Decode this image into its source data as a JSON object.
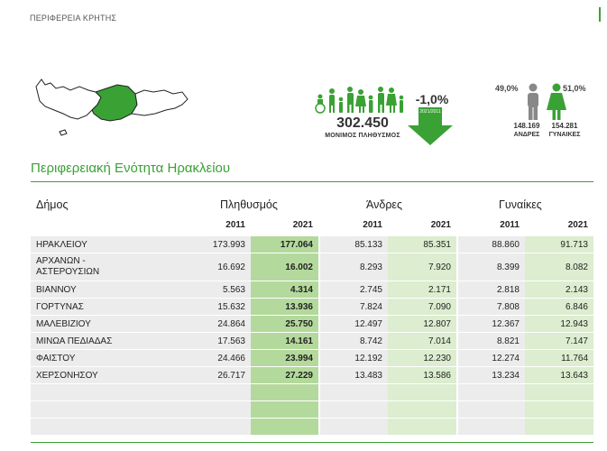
{
  "header": {
    "region": "ΠΕΡΙΦΕΡΕΙΑ ΚΡΗΤΗΣ"
  },
  "colors": {
    "accent": "#3aa135",
    "highlight_dark": "#b4d99c",
    "highlight_light": "#dcedd0",
    "row_bg": "#ececec"
  },
  "infographic": {
    "population": "302.450",
    "population_label": "ΜΟΝΙΜΟΣ ΠΛΗΘΥΣΜΟΣ",
    "change": "-1,0%",
    "change_note": "2021/2011",
    "men_pct": "49,0%",
    "women_pct": "51,0%",
    "men": "148.169",
    "women": "154.281",
    "men_label": "ΑΝΔΡΕΣ",
    "women_label": "ΓΥΝΑΙΚΕΣ",
    "icons": [
      "crete-map-icon",
      "family-group-icon",
      "down-arrow-icon",
      "man-icon",
      "woman-icon"
    ]
  },
  "section": {
    "title": "Περιφερειακή Ενότητα Ηρακλείου"
  },
  "table": {
    "headers": {
      "municipality": "Δήμος",
      "population": "Πληθυσμός",
      "men": "Άνδρες",
      "women": "Γυναίκες"
    },
    "years": [
      "2011",
      "2021",
      "2011",
      "2021",
      "2011",
      "2021"
    ],
    "rows": [
      {
        "name": "ΗΡΑΚΛΕΙΟΥ",
        "p11": "173.993",
        "p21": "177.064",
        "m11": "85.133",
        "m21": "85.351",
        "w11": "88.860",
        "w21": "91.713"
      },
      {
        "name": "ΑΡΧΑΝΩΝ - ΑΣΤΕΡΟΥΣΙΩΝ",
        "p11": "16.692",
        "p21": "16.002",
        "m11": "8.293",
        "m21": "7.920",
        "w11": "8.399",
        "w21": "8.082"
      },
      {
        "name": "ΒΙΑΝΝΟΥ",
        "p11": "5.563",
        "p21": "4.314",
        "m11": "2.745",
        "m21": "2.171",
        "w11": "2.818",
        "w21": "2.143"
      },
      {
        "name": "ΓΟΡΤΥΝΑΣ",
        "p11": "15.632",
        "p21": "13.936",
        "m11": "7.824",
        "m21": "7.090",
        "w11": "7.808",
        "w21": "6.846"
      },
      {
        "name": "ΜΑΛΕΒΙΖΙΟΥ",
        "p11": "24.864",
        "p21": "25.750",
        "m11": "12.497",
        "m21": "12.807",
        "w11": "12.367",
        "w21": "12.943"
      },
      {
        "name": "ΜΙΝΩΑ ΠΕΔΙΑΔΑΣ",
        "p11": "17.563",
        "p21": "14.161",
        "m11": "8.742",
        "m21": "7.014",
        "w11": "8.821",
        "w21": "7.147"
      },
      {
        "name": "ΦΑΙΣΤΟΥ",
        "p11": "24.466",
        "p21": "23.994",
        "m11": "12.192",
        "m21": "12.230",
        "w11": "12.274",
        "w21": "11.764"
      },
      {
        "name": "ΧΕΡΣΟΝΗΣΟΥ",
        "p11": "26.717",
        "p21": "27.229",
        "m11": "13.483",
        "m21": "13.586",
        "w11": "13.234",
        "w21": "13.643"
      }
    ]
  }
}
